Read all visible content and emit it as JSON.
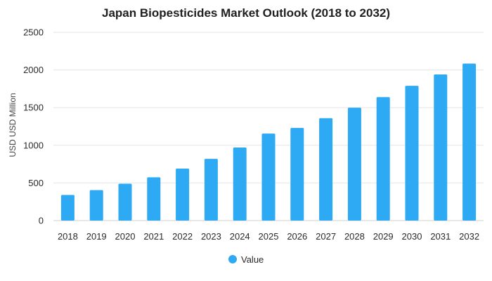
{
  "chart_data": {
    "type": "bar",
    "title": "Japan Biopesticides Market Outlook (2018 to 2032)",
    "xlabel": "",
    "ylabel": "USD USD Million",
    "categories": [
      "2018",
      "2019",
      "2020",
      "2021",
      "2022",
      "2023",
      "2024",
      "2025",
      "2026",
      "2027",
      "2028",
      "2029",
      "2030",
      "2031",
      "2032"
    ],
    "series": [
      {
        "name": "Value",
        "color": "#2eaaf5",
        "values": [
          340,
          405,
          490,
          575,
          690,
          820,
          970,
          1155,
          1230,
          1360,
          1500,
          1640,
          1790,
          1940,
          2085
        ]
      }
    ],
    "ylim": [
      0,
      2500
    ],
    "yticks": [
      0,
      500,
      1000,
      1500,
      2000,
      2500
    ],
    "grid": true,
    "legend_position": "bottom"
  }
}
